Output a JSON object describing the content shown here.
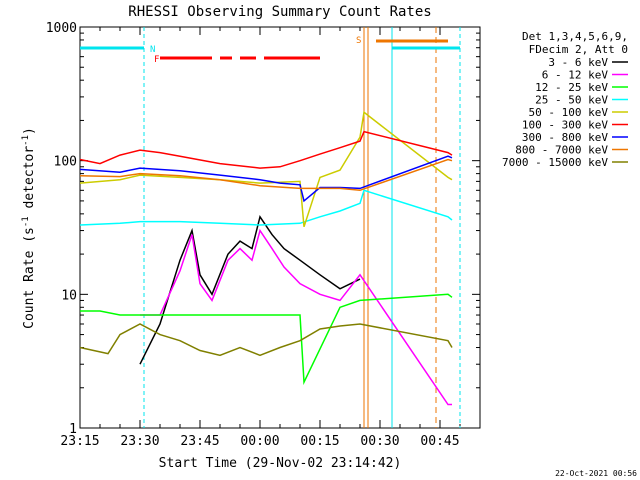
{
  "chart_data": {
    "type": "line",
    "title": "RHESSI Observing Summary Count Rates",
    "xlabel": "Start Time (29-Nov-02 23:14:42)",
    "ylabel": "Count Rate (s⁻¹ detector⁻¹)",
    "y_scale": "log",
    "ylim": [
      1,
      1000
    ],
    "xlim": [
      "23:15",
      "00:55"
    ],
    "x_tick_labels": [
      "23:15",
      "23:30",
      "23:45",
      "00:00",
      "00:15",
      "00:30",
      "00:45"
    ],
    "y_tick_labels": [
      "1",
      "10",
      "100",
      "1000"
    ],
    "legend_title": [
      "Det 1,3,4,5,6,9,",
      "FDecim 2, Att 0"
    ],
    "legend_position": "top-right outside",
    "footer": "22-Oct-2021 00:56",
    "flag_labels": {
      "N": {
        "label": "N",
        "color": "#00e5ee"
      },
      "F": {
        "label": "F",
        "color": "#ff0000"
      },
      "S": {
        "label": "S",
        "color": "#ee7600"
      }
    },
    "series": [
      {
        "name": "3 - 6 keV",
        "color": "#000000",
        "x": [
          "23:30",
          "23:35",
          "23:40",
          "23:43",
          "23:45",
          "23:48",
          "23:52",
          "23:55",
          "23:58",
          "00:00",
          "00:03",
          "00:06",
          "00:10",
          "00:15",
          "00:20",
          "00:25"
        ],
        "y": [
          3,
          6,
          18,
          30,
          14,
          10,
          20,
          25,
          22,
          38,
          28,
          22,
          18,
          14,
          11,
          13
        ]
      },
      {
        "name": "6 - 12 keV",
        "color": "#ff00ff",
        "x": [
          "23:30",
          "23:35",
          "23:40",
          "23:43",
          "23:45",
          "23:48",
          "23:52",
          "23:55",
          "23:58",
          "00:00",
          "00:03",
          "00:06",
          "00:10",
          "00:15",
          "00:20",
          "00:25",
          "00:47",
          "00:48"
        ],
        "y": [
          7,
          7,
          15,
          28,
          12,
          9,
          18,
          22,
          18,
          30,
          22,
          16,
          12,
          10,
          9,
          14,
          1.5,
          1.5
        ]
      },
      {
        "name": "12 - 25 keV",
        "color": "#00ff00",
        "x": [
          "23:15",
          "23:20",
          "23:25",
          "23:30",
          "23:40",
          "23:50",
          "00:00",
          "00:10",
          "00:11",
          "00:20",
          "00:25",
          "00:47",
          "00:48"
        ],
        "y": [
          7.5,
          7.5,
          7,
          7,
          7,
          7,
          7,
          7,
          2.2,
          8,
          9,
          10,
          9.5
        ]
      },
      {
        "name": "25 - 50 keV",
        "color": "#00ffff",
        "x": [
          "23:15",
          "23:25",
          "23:30",
          "23:40",
          "23:50",
          "00:00",
          "00:10",
          "00:15",
          "00:20",
          "00:25",
          "00:26",
          "00:47",
          "00:48"
        ],
        "y": [
          33,
          34,
          35,
          35,
          34,
          33,
          34,
          38,
          42,
          48,
          60,
          38,
          36
        ]
      },
      {
        "name": "50 - 100 keV",
        "color": "#cccc00",
        "x": [
          "23:15",
          "23:25",
          "23:30",
          "23:40",
          "23:50",
          "00:00",
          "00:10",
          "00:11",
          "00:15",
          "00:20",
          "00:25",
          "00:26",
          "00:47",
          "00:48"
        ],
        "y": [
          68,
          72,
          78,
          75,
          72,
          68,
          70,
          32,
          75,
          85,
          150,
          230,
          75,
          72
        ]
      },
      {
        "name": "100 - 300 keV",
        "color": "#ff0000",
        "x": [
          "23:15",
          "23:20",
          "23:25",
          "23:30",
          "23:35",
          "23:40",
          "23:50",
          "00:00",
          "00:05",
          "00:10",
          "00:15",
          "00:20",
          "00:25",
          "00:26",
          "00:47",
          "00:48"
        ],
        "y": [
          102,
          95,
          110,
          120,
          115,
          108,
          95,
          88,
          90,
          100,
          112,
          125,
          140,
          165,
          115,
          110
        ]
      },
      {
        "name": "300 - 800 keV",
        "color": "#0000ff",
        "x": [
          "23:15",
          "23:25",
          "23:30",
          "23:40",
          "23:50",
          "00:00",
          "00:05",
          "00:10",
          "00:11",
          "00:15",
          "00:20",
          "00:25",
          "00:47",
          "00:48"
        ],
        "y": [
          86,
          82,
          88,
          84,
          78,
          72,
          68,
          66,
          50,
          63,
          63,
          62,
          108,
          105
        ]
      },
      {
        "name": "800 - 7000 keV",
        "color": "#ee7600",
        "x": [
          "23:15",
          "23:25",
          "23:30",
          "23:40",
          "23:50",
          "00:00",
          "00:10",
          "00:20",
          "00:25",
          "00:47",
          "00:48"
        ],
        "y": [
          77,
          76,
          80,
          77,
          72,
          65,
          62,
          62,
          60,
          102,
          100
        ]
      },
      {
        "name": "7000 - 15000 keV",
        "color": "#808000",
        "x": [
          "23:15",
          "23:22",
          "23:25",
          "23:30",
          "23:35",
          "23:40",
          "23:45",
          "23:50",
          "23:55",
          "00:00",
          "00:05",
          "00:10",
          "00:15",
          "00:20",
          "00:25",
          "00:47",
          "00:48"
        ],
        "y": [
          4,
          3.6,
          5,
          6,
          5,
          4.5,
          3.8,
          3.5,
          4,
          3.5,
          4,
          4.5,
          5.5,
          5.8,
          6,
          4.5,
          4
        ]
      }
    ]
  }
}
